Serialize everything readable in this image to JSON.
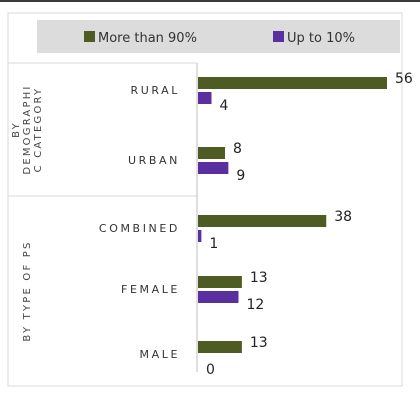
{
  "chart_data": {
    "type": "bar",
    "orientation": "horizontal",
    "legend_position": "top",
    "legend": [
      {
        "name": "More than 90%",
        "color": "#4e5b23"
      },
      {
        "name": "Up to 10%",
        "color": "#5a2fa0"
      }
    ],
    "groups": [
      {
        "title": "BY DEMOGRAPHIC CATEGORY",
        "title_lines": [
          "BY",
          "DEMOGRAPHI",
          "C CATEGORY"
        ],
        "categories": [
          "RURAL",
          "URBAN"
        ]
      },
      {
        "title": "BY TYPE OF PS",
        "title_lines": [
          "BY TYPE OF PS"
        ],
        "categories": [
          "COMBINED",
          "FEMALE",
          "MALE"
        ]
      }
    ],
    "categories": [
      "RURAL",
      "URBAN",
      "COMBINED",
      "FEMALE",
      "MALE"
    ],
    "series": [
      {
        "name": "More than 90%",
        "values": [
          56,
          8,
          38,
          13,
          13
        ]
      },
      {
        "name": "Up to 10%",
        "values": [
          4,
          9,
          1,
          12,
          0
        ]
      }
    ],
    "xlim": [
      0,
      56
    ],
    "grid": false
  }
}
